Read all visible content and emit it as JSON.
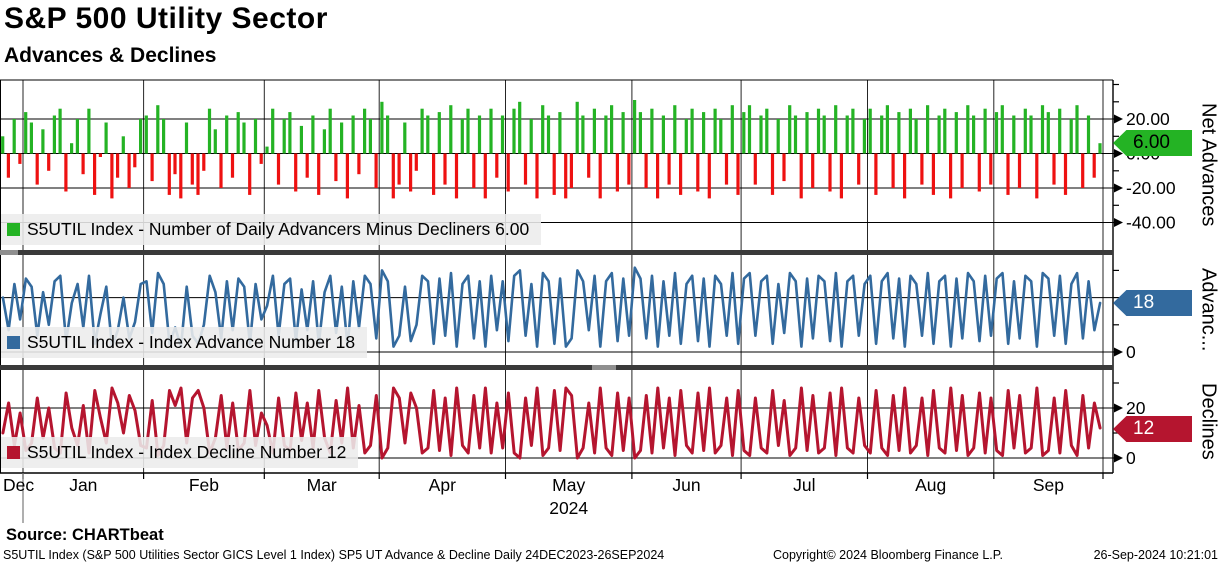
{
  "header": {
    "title": "S&P 500 Utility Sector",
    "subtitle": "Advances & Declines"
  },
  "chart_data": {
    "type": "bar",
    "note": "three stacked panels sharing one daily x-axis, 24DEC2023-26SEP2024",
    "x_axis": {
      "months": [
        {
          "label": "Dec",
          "days": 4
        },
        {
          "label": "Jan",
          "days": 21
        },
        {
          "label": "Feb",
          "days": 21
        },
        {
          "label": "Mar",
          "days": 20
        },
        {
          "label": "Apr",
          "days": 22
        },
        {
          "label": "May",
          "days": 22
        },
        {
          "label": "Jun",
          "days": 19
        },
        {
          "label": "Jul",
          "days": 22
        },
        {
          "label": "Aug",
          "days": 22
        },
        {
          "label": "Sep",
          "days": 19
        }
      ],
      "year_label": "2024",
      "year_under_month_index": 5
    },
    "panels": [
      {
        "type": "bar",
        "series_label": "S5UTIL Index - Number of Daily Advancers Minus Decliners 6.00",
        "axis_label": "Net Advances",
        "last_value_label": "6.00",
        "legend_color": "#24b324",
        "color_positive": "#24b324",
        "color_negative": "#ee1111",
        "tag_color": "#24b324",
        "tag_text_color": "#000000",
        "tag_value": 6.0,
        "ticks": [
          {
            "v": 20,
            "label": "20.00"
          },
          {
            "v": 0,
            "label": "0.00"
          },
          {
            "v": -20,
            "label": "-20.00"
          },
          {
            "v": -40,
            "label": "-40.00"
          }
        ],
        "gridline_values": [
          20,
          0,
          -20,
          -40
        ],
        "minor_tick_range": [
          -40,
          40
        ]
      },
      {
        "type": "line",
        "series_label": "S5UTIL Index - Index Advance Number 18",
        "axis_label": "Advanc...",
        "last_value_label": "18",
        "legend_color": "#336a9e",
        "line_color": "#336a9e",
        "tag_color": "#336a9e",
        "tag_text_color": "#ffffff",
        "tag_value": 18,
        "ticks": [
          {
            "v": 0,
            "label": "0"
          }
        ],
        "gridline_values": [
          20,
          0
        ],
        "minor_tick_range": [
          0,
          30
        ]
      },
      {
        "type": "line",
        "series_label": "S5UTIL Index - Index Decline Number 12",
        "axis_label": "Declines",
        "last_value_label": "12",
        "legend_color": "#b5152f",
        "line_color": "#b5152f",
        "tag_color": "#b5152f",
        "tag_text_color": "#ffffff",
        "tag_value": 12,
        "ticks": [
          {
            "v": 20,
            "label": "20"
          },
          {
            "v": 0,
            "label": "0"
          }
        ],
        "gridline_values": [
          20,
          0
        ],
        "minor_tick_range": [
          0,
          30
        ]
      }
    ],
    "series": {
      "net_advances": [
        10,
        -14,
        20,
        -6,
        24,
        18,
        -18,
        14,
        -10,
        22,
        26,
        -22,
        6,
        20,
        -12,
        26,
        -24,
        -2,
        18,
        -26,
        -14,
        10,
        -20,
        -8,
        20,
        22,
        -16,
        28,
        20,
        -24,
        -12,
        -26,
        18,
        -18,
        -24,
        -10,
        26,
        14,
        -20,
        22,
        -14,
        24,
        18,
        -24,
        20,
        -6,
        4,
        26,
        -18,
        20,
        24,
        -22,
        16,
        -14,
        22,
        -24,
        14,
        26,
        -16,
        18,
        -26,
        22,
        -12,
        26,
        20,
        -20,
        30,
        22,
        -26,
        -18,
        18,
        -22,
        -10,
        26,
        22,
        -24,
        24,
        -18,
        28,
        -26,
        20,
        26,
        -20,
        22,
        -26,
        26,
        -14,
        22,
        -22,
        26,
        30,
        -18,
        20,
        -26,
        28,
        22,
        -24,
        24,
        -26,
        -20,
        30,
        22,
        -14,
        26,
        -26,
        22,
        28,
        -22,
        24,
        -18,
        31,
        24,
        -20,
        26,
        -26,
        22,
        -18,
        28,
        -24,
        20,
        26,
        -22,
        24,
        -26,
        26,
        20,
        -18,
        28,
        -24,
        24,
        28,
        -18,
        22,
        26,
        -24,
        20,
        -16,
        28,
        22,
        -26,
        24,
        -20,
        26,
        22,
        -22,
        28,
        -26,
        22,
        26,
        -18,
        20,
        26,
        -24,
        22,
        28,
        -20,
        24,
        -26,
        26,
        20,
        -18,
        28,
        -24,
        22,
        26,
        -26,
        24,
        -20,
        28,
        22,
        -22,
        26,
        -18,
        24,
        28,
        -24,
        22,
        -20,
        26,
        22,
        -26,
        28,
        24,
        -18,
        26,
        -24,
        20,
        28,
        -20,
        22,
        -14,
        6
      ],
      "advances": [
        20,
        8,
        25,
        12,
        27,
        24,
        6,
        22,
        10,
        26,
        28,
        4,
        18,
        25,
        9,
        28,
        3,
        14,
        24,
        2,
        8,
        20,
        5,
        11,
        25,
        26,
        7,
        29,
        25,
        3,
        9,
        2,
        24,
        6,
        3,
        10,
        28,
        22,
        5,
        26,
        8,
        27,
        24,
        3,
        25,
        12,
        17,
        28,
        6,
        25,
        27,
        4,
        23,
        8,
        26,
        3,
        22,
        28,
        7,
        24,
        2,
        26,
        9,
        28,
        25,
        5,
        30,
        26,
        2,
        6,
        24,
        4,
        10,
        28,
        26,
        3,
        27,
        6,
        29,
        2,
        25,
        28,
        5,
        26,
        2,
        28,
        8,
        26,
        4,
        28,
        30,
        6,
        25,
        2,
        29,
        26,
        3,
        27,
        2,
        5,
        30,
        26,
        8,
        28,
        2,
        26,
        29,
        4,
        27,
        6,
        31,
        27,
        5,
        28,
        2,
        26,
        6,
        29,
        3,
        25,
        28,
        4,
        27,
        2,
        28,
        25,
        6,
        29,
        3,
        27,
        29,
        6,
        26,
        28,
        3,
        25,
        7,
        29,
        26,
        2,
        27,
        5,
        28,
        26,
        4,
        29,
        2,
        26,
        28,
        6,
        25,
        28,
        3,
        26,
        29,
        5,
        27,
        2,
        28,
        25,
        6,
        29,
        3,
        26,
        28,
        2,
        27,
        5,
        29,
        26,
        4,
        28,
        6,
        27,
        29,
        3,
        26,
        5,
        28,
        26,
        2,
        29,
        27,
        6,
        28,
        3,
        25,
        29,
        5,
        26,
        8,
        18
      ],
      "declines": [
        10,
        22,
        5,
        18,
        3,
        6,
        24,
        8,
        20,
        4,
        2,
        26,
        12,
        5,
        21,
        2,
        27,
        16,
        6,
        28,
        22,
        10,
        25,
        19,
        5,
        4,
        23,
        1,
        5,
        27,
        21,
        28,
        6,
        24,
        27,
        20,
        2,
        8,
        25,
        4,
        22,
        3,
        6,
        27,
        5,
        18,
        13,
        2,
        24,
        5,
        3,
        26,
        7,
        22,
        4,
        27,
        8,
        2,
        23,
        6,
        28,
        4,
        21,
        2,
        5,
        25,
        0,
        4,
        28,
        24,
        6,
        26,
        20,
        2,
        4,
        27,
        3,
        24,
        1,
        28,
        5,
        2,
        25,
        4,
        28,
        2,
        22,
        4,
        26,
        2,
        0,
        24,
        5,
        28,
        1,
        4,
        27,
        3,
        28,
        25,
        0,
        4,
        22,
        2,
        28,
        4,
        1,
        26,
        3,
        24,
        0,
        3,
        25,
        2,
        28,
        4,
        24,
        1,
        27,
        5,
        2,
        26,
        3,
        28,
        2,
        5,
        24,
        1,
        27,
        3,
        1,
        24,
        4,
        2,
        27,
        5,
        23,
        1,
        4,
        28,
        3,
        25,
        2,
        4,
        26,
        1,
        28,
        4,
        2,
        24,
        5,
        2,
        27,
        4,
        1,
        25,
        3,
        28,
        2,
        5,
        24,
        1,
        27,
        4,
        2,
        28,
        3,
        25,
        1,
        4,
        26,
        2,
        24,
        3,
        1,
        27,
        4,
        25,
        2,
        4,
        28,
        1,
        3,
        24,
        2,
        27,
        5,
        1,
        25,
        4,
        22,
        12
      ]
    }
  },
  "footer": {
    "source": "Source: CHARTbeat",
    "description": "S5UTIL Index (S&P 500 Utilities Sector GICS Level 1 Index) SP5 UT Advance & Decline  Daily 24DEC2023-26SEP2024",
    "copyright": "Copyright© 2024 Bloomberg Finance L.P.",
    "timestamp": "26-Sep-2024 10:21:01"
  }
}
